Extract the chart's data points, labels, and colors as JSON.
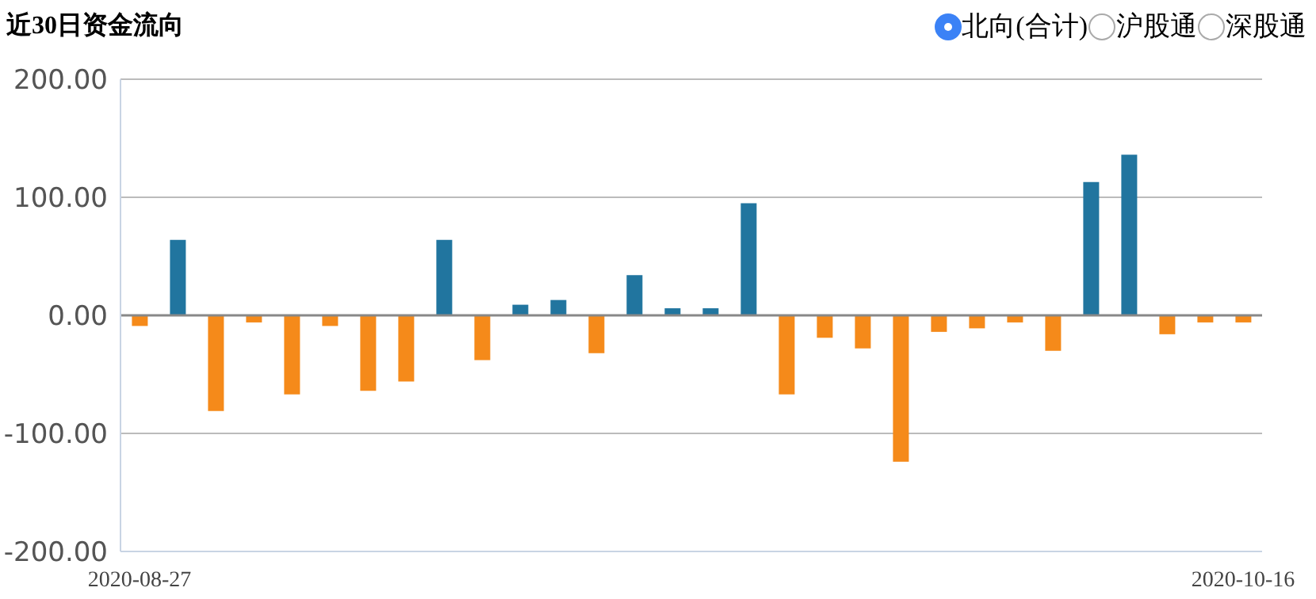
{
  "chart_data": {
    "type": "bar",
    "title": "近30日资金流向",
    "categories": [
      "2020-08-27",
      null,
      null,
      null,
      null,
      null,
      null,
      null,
      null,
      null,
      null,
      null,
      null,
      null,
      null,
      null,
      null,
      null,
      null,
      null,
      null,
      null,
      null,
      null,
      null,
      null,
      null,
      null,
      null,
      "2020-10-16"
    ],
    "values": [
      -9,
      64,
      -81,
      -6,
      -67,
      -9,
      -64,
      -56,
      64,
      -38,
      9,
      13,
      -32,
      34,
      6,
      6,
      95,
      -67,
      -19,
      -28,
      -124,
      -14,
      -11,
      -6,
      -30,
      113,
      136,
      -16,
      -6,
      -6
    ],
    "colors": [
      "#f58a1a",
      "#21759f",
      "#f58a1a",
      "#f58a1a",
      "#f58a1a",
      "#f58a1a",
      "#f58a1a",
      "#f58a1a",
      "#21759f",
      "#f58a1a",
      "#21759f",
      "#21759f",
      "#f58a1a",
      "#21759f",
      "#21759f",
      "#21759f",
      "#21759f",
      "#f58a1a",
      "#f58a1a",
      "#f58a1a",
      "#f58a1a",
      "#f58a1a",
      "#f58a1a",
      "#f58a1a",
      "#f58a1a",
      "#21759f",
      "#21759f",
      "#f58a1a",
      "#f58a1a",
      "#f58a1a"
    ],
    "ylim": [
      -200,
      200
    ],
    "yticks": [
      {
        "value": -200,
        "label": "-200.00"
      },
      {
        "value": -100,
        "label": "-100.00"
      },
      {
        "value": 0,
        "label": "0.00"
      },
      {
        "value": 100,
        "label": "100.00"
      },
      {
        "value": 200,
        "label": "200.00"
      }
    ],
    "grid": "y",
    "annotations": [
      "北向(合计)",
      "沪股通",
      "深股通"
    ]
  }
}
